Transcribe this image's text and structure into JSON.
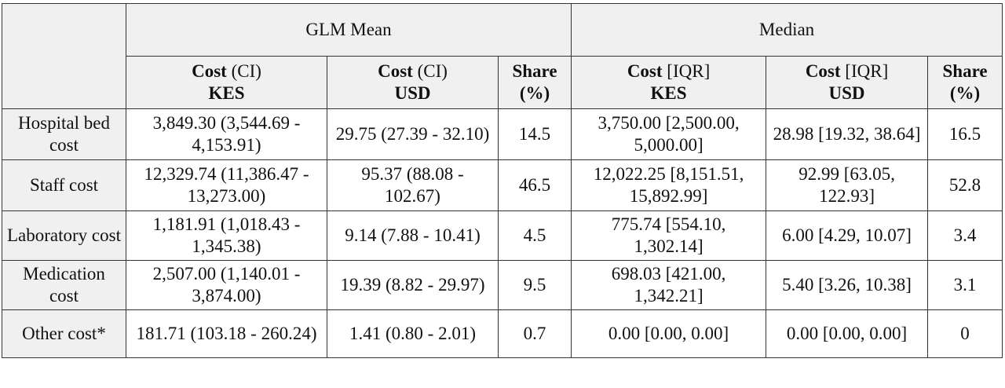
{
  "top_fragment": "",
  "table": {
    "groups": [
      {
        "label": "GLM Mean"
      },
      {
        "label": "Median"
      }
    ],
    "columns": [
      {
        "main": "Cost",
        "paren": " (CI)",
        "unit": "KES"
      },
      {
        "main": "Cost",
        "paren": " (CI)",
        "unit": "USD"
      },
      {
        "main": "Share",
        "paren": "",
        "unit": "(%)"
      },
      {
        "main": "Cost",
        "paren": " [IQR]",
        "unit": "KES"
      },
      {
        "main": "Cost",
        "paren": " [IQR]",
        "unit": "USD"
      },
      {
        "main": "Share",
        "paren": "",
        "unit": "(%)"
      }
    ],
    "rows": [
      {
        "label": "Hospital bed cost",
        "glm_kes": "3,849.30 (3,544.69 - 4,153.91)",
        "glm_usd": "29.75 (27.39 - 32.10)",
        "glm_share": "14.5",
        "med_kes": "3,750.00 [2,500.00, 5,000.00]",
        "med_usd": "28.98 [19.32, 38.64]",
        "med_share": "16.5"
      },
      {
        "label": "Staff cost",
        "glm_kes": "12,329.74 (11,386.47 - 13,273.00)",
        "glm_usd": "95.37 (88.08 - 102.67)",
        "glm_share": "46.5",
        "med_kes": "12,022.25 [8,151.51, 15,892.99]",
        "med_usd": "92.99 [63.05, 122.93]",
        "med_share": "52.8"
      },
      {
        "label": "Laboratory cost",
        "glm_kes": "1,181.91 (1,018.43 - 1,345.38)",
        "glm_usd": "9.14 (7.88 - 10.41)",
        "glm_share": "4.5",
        "med_kes": "775.74 [554.10, 1,302.14]",
        "med_usd": "6.00 [4.29, 10.07]",
        "med_share": "3.4"
      },
      {
        "label": "Medication cost",
        "glm_kes": "2,507.00 (1,140.01 - 3,874.00)",
        "glm_usd": "19.39 (8.82 - 29.97)",
        "glm_share": "9.5",
        "med_kes": "698.03 [421.00, 1,342.21]",
        "med_usd": "5.40 [3.26, 10.38]",
        "med_share": "3.1"
      },
      {
        "label": "Other cost*",
        "glm_kes": "181.71 (103.18 - 260.24)",
        "glm_usd": "1.41 (0.80 - 2.01)",
        "glm_share": "0.7",
        "med_kes": "0.00 [0.00, 0.00]",
        "med_usd": "0.00 [0.00, 0.00]",
        "med_share": "0"
      }
    ]
  }
}
